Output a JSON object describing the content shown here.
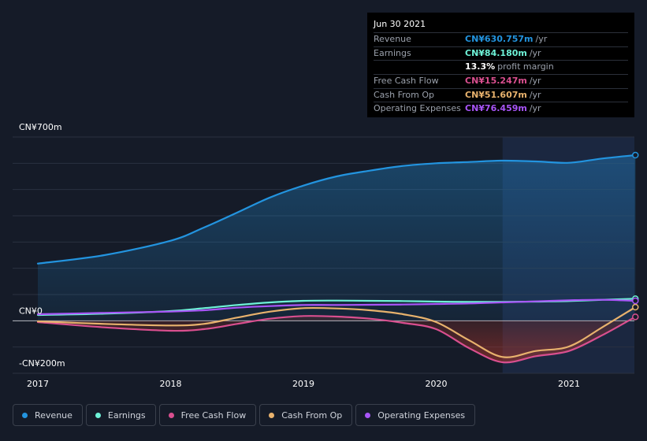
{
  "tooltip": {
    "date": "Jun 30 2021",
    "rows": [
      {
        "label": "Revenue",
        "value": "CN¥630.757m",
        "unit": "/yr",
        "color": "#2394df"
      },
      {
        "label": "Earnings",
        "value": "CN¥84.180m",
        "unit": "/yr",
        "color": "#6ef2d7"
      },
      {
        "label": "",
        "value": "13.3%",
        "unit": "profit margin",
        "color": "#ffffff"
      },
      {
        "label": "Free Cash Flow",
        "value": "CN¥15.247m",
        "unit": "/yr",
        "color": "#d94f8f"
      },
      {
        "label": "Cash From Op",
        "value": "CN¥51.607m",
        "unit": "/yr",
        "color": "#e8b26d"
      },
      {
        "label": "Operating Expenses",
        "value": "CN¥76.459m",
        "unit": "/yr",
        "color": "#a855f7"
      }
    ]
  },
  "legend": [
    {
      "label": "Revenue",
      "color": "#2394df"
    },
    {
      "label": "Earnings",
      "color": "#6ef2d7"
    },
    {
      "label": "Free Cash Flow",
      "color": "#d94f8f"
    },
    {
      "label": "Cash From Op",
      "color": "#e8b26d"
    },
    {
      "label": "Operating Expenses",
      "color": "#a855f7"
    }
  ],
  "chart_data": {
    "type": "area",
    "ylim": [
      -200,
      700
    ],
    "y_tick_labels": [
      {
        "value": 700,
        "label": "CN¥700m"
      },
      {
        "value": 0,
        "label": "CN¥0"
      },
      {
        "value": -200,
        "label": "-CN¥200m"
      }
    ],
    "x_ticks": [
      {
        "value": 2017.0,
        "label": "2017"
      },
      {
        "value": 2018.0,
        "label": "2018"
      },
      {
        "value": 2019.0,
        "label": "2019"
      },
      {
        "value": 2020.0,
        "label": "2020"
      },
      {
        "value": 2021.0,
        "label": "2021"
      }
    ],
    "xlim": [
      2016.8,
      2021.5
    ],
    "highlight_from": 2020.5,
    "series": [
      {
        "name": "Revenue",
        "color": "#2394df",
        "x": [
          2017.0,
          2017.5,
          2018.0,
          2018.25,
          2018.5,
          2018.75,
          2019.0,
          2019.25,
          2019.5,
          2019.75,
          2020.0,
          2020.25,
          2020.5,
          2020.75,
          2021.0,
          2021.25,
          2021.5
        ],
        "y": [
          218,
          250,
          305,
          355,
          412,
          470,
          515,
          550,
          572,
          590,
          600,
          605,
          610,
          607,
          602,
          618,
          631
        ]
      },
      {
        "name": "Earnings",
        "color": "#6ef2d7",
        "x": [
          2017.0,
          2017.5,
          2018.0,
          2018.25,
          2018.5,
          2018.75,
          2019.0,
          2019.25,
          2019.5,
          2019.75,
          2020.0,
          2020.25,
          2020.5,
          2020.75,
          2021.0,
          2021.25,
          2021.5
        ],
        "y": [
          22,
          27,
          37,
          48,
          60,
          70,
          76,
          77,
          76,
          75,
          73,
          72,
          72,
          73,
          75,
          80,
          84
        ]
      },
      {
        "name": "Free Cash Flow",
        "color": "#d94f8f",
        "x": [
          2017.0,
          2017.5,
          2018.0,
          2018.25,
          2018.5,
          2018.75,
          2019.0,
          2019.25,
          2019.5,
          2019.75,
          2020.0,
          2020.25,
          2020.5,
          2020.75,
          2021.0,
          2021.25,
          2021.5
        ],
        "y": [
          -5,
          -25,
          -38,
          -32,
          -12,
          8,
          18,
          16,
          8,
          -8,
          -32,
          -105,
          -158,
          -135,
          -115,
          -55,
          15
        ]
      },
      {
        "name": "Cash From Op",
        "color": "#e8b26d",
        "x": [
          2017.0,
          2017.5,
          2018.0,
          2018.25,
          2018.5,
          2018.75,
          2019.0,
          2019.25,
          2019.5,
          2019.75,
          2020.0,
          2020.25,
          2020.5,
          2020.75,
          2021.0,
          2021.25,
          2021.5
        ],
        "y": [
          -2,
          -12,
          -18,
          -12,
          12,
          35,
          48,
          47,
          40,
          25,
          -5,
          -75,
          -138,
          -115,
          -98,
          -25,
          52
        ]
      },
      {
        "name": "Operating Expenses",
        "color": "#a855f7",
        "x": [
          2017.0,
          2017.5,
          2018.0,
          2018.25,
          2018.5,
          2018.75,
          2019.0,
          2019.25,
          2019.5,
          2019.75,
          2020.0,
          2020.25,
          2020.5,
          2020.75,
          2021.0,
          2021.25,
          2021.5
        ],
        "y": [
          25,
          30,
          35,
          40,
          50,
          56,
          60,
          60,
          61,
          62,
          64,
          66,
          70,
          74,
          78,
          80,
          76
        ]
      }
    ]
  }
}
